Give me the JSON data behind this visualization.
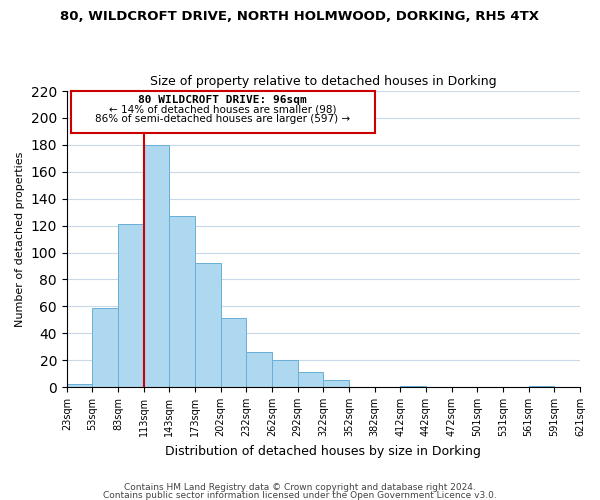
{
  "title": "80, WILDCROFT DRIVE, NORTH HOLMWOOD, DORKING, RH5 4TX",
  "subtitle": "Size of property relative to detached houses in Dorking",
  "xlabel": "Distribution of detached houses by size in Dorking",
  "ylabel": "Number of detached properties",
  "bar_values": [
    2,
    59,
    121,
    180,
    127,
    92,
    51,
    26,
    20,
    11,
    5,
    0,
    0,
    1,
    0,
    0,
    0,
    0,
    1,
    0
  ],
  "tick_labels": [
    "23sqm",
    "53sqm",
    "83sqm",
    "113sqm",
    "143sqm",
    "173sqm",
    "202sqm",
    "232sqm",
    "262sqm",
    "292sqm",
    "322sqm",
    "352sqm",
    "382sqm",
    "412sqm",
    "442sqm",
    "472sqm",
    "501sqm",
    "531sqm",
    "561sqm",
    "591sqm",
    "621sqm"
  ],
  "bar_color": "#add8f0",
  "bar_edge_color": "#6aafd6",
  "annotation_box_color": "#ffffff",
  "annotation_border_color": "#cc0000",
  "vline_color": "#cc0000",
  "vline_x": 3,
  "annotation_title": "80 WILDCROFT DRIVE: 96sqm",
  "annotation_line1": "← 14% of detached houses are smaller (98)",
  "annotation_line2": "86% of semi-detached houses are larger (597) →",
  "ylim": [
    0,
    220
  ],
  "yticks": [
    0,
    20,
    40,
    60,
    80,
    100,
    120,
    140,
    160,
    180,
    200,
    220
  ],
  "footer1": "Contains HM Land Registry data © Crown copyright and database right 2024.",
  "footer2": "Contains public sector information licensed under the Open Government Licence v3.0.",
  "background_color": "#ffffff",
  "grid_color": "#c8daea"
}
